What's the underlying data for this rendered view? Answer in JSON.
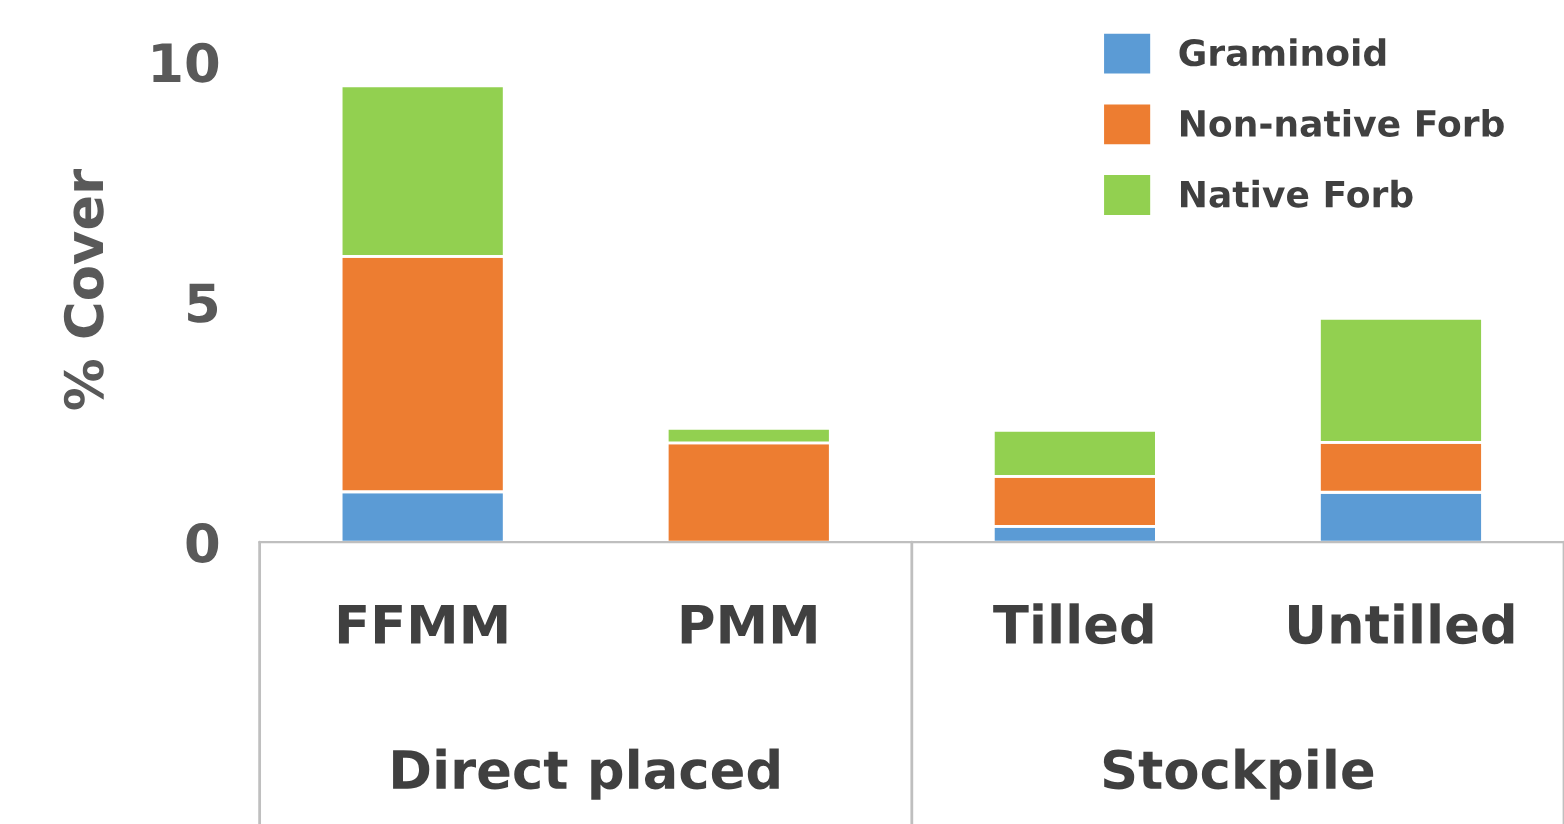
{
  "chart_data": {
    "type": "bar",
    "stacked": true,
    "ylabel": "% Cover",
    "categories": [
      "FFMM",
      "PMM",
      "Tilled",
      "Untilled"
    ],
    "series": [
      {
        "name": "Graminoid",
        "color": "#5b9bd5",
        "values": [
          1.05,
          null,
          0.33,
          1.04
        ]
      },
      {
        "name": "Non-native Forb",
        "color": "#ed7d31",
        "values": [
          4.9,
          2.07,
          1.04,
          1.04
        ]
      },
      {
        "name": "Native Forb",
        "color": "#92d050",
        "values": [
          3.55,
          0.3,
          0.96,
          2.58
        ]
      }
    ],
    "ylim": [
      0,
      10.5
    ],
    "yticks": [
      0,
      5,
      10
    ],
    "grid": false,
    "legend": "top right",
    "annotations": [
      "Direct placed",
      "Stockpile"
    ]
  }
}
